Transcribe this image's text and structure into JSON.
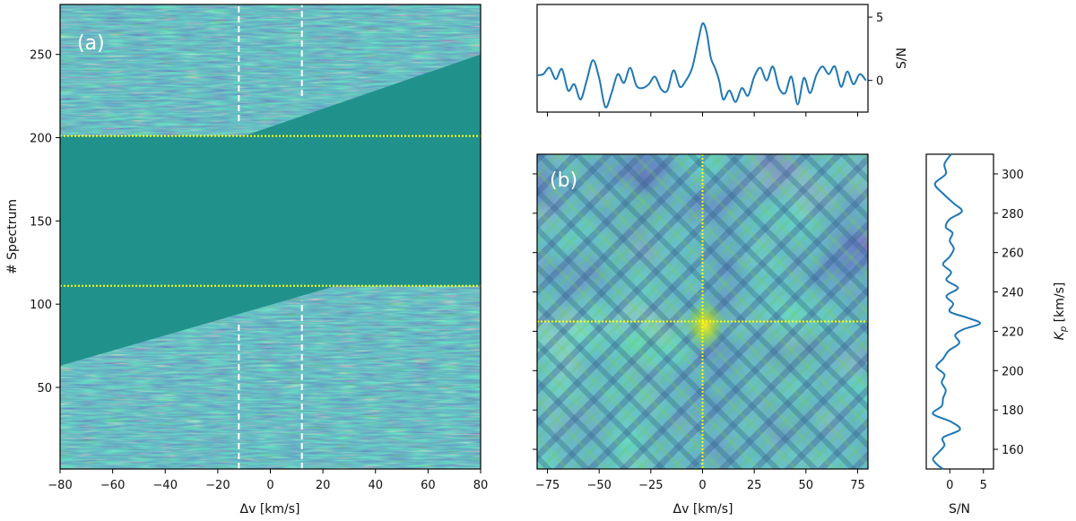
{
  "chart_data": [
    {
      "type": "heatmap",
      "panel": "(a)",
      "xlabel": "Δv [km/s]",
      "ylabel": "# Spectrum",
      "xlim": [
        -80,
        80
      ],
      "ylim": [
        1,
        280
      ],
      "xticks": [
        -80,
        -60,
        -40,
        -20,
        0,
        20,
        40,
        60,
        80
      ],
      "yticks": [
        50,
        100,
        150,
        200,
        250
      ],
      "masked_value_color": "#21918c",
      "colormap": "viridis",
      "masked_regions": [
        {
          "description_rows": [
            201,
            111
          ],
          "full_width": true
        },
        {
          "upper_edge_from": [
            -10,
            201
          ],
          "upper_edge_to": [
            80,
            250
          ]
        },
        {
          "lower_edge_from": [
            -80,
            63
          ],
          "lower_edge_to": [
            25,
            111
          ]
        }
      ],
      "horizontal_lines": [
        201,
        111
      ],
      "horizontal_line_color": "#ffff00",
      "vertical_dashed_segments": [
        {
          "x": -12,
          "y": [
            210,
            280
          ]
        },
        {
          "x": 12,
          "y": [
            225,
            280
          ]
        },
        {
          "x": -12,
          "y": [
            1,
            89
          ]
        },
        {
          "x": 12,
          "y": [
            1,
            102
          ]
        }
      ],
      "grid": false
    },
    {
      "type": "line",
      "panel": "top",
      "ylabel": "S/N",
      "xlim": [
        -80,
        80
      ],
      "ylim": [
        -2.5,
        6
      ],
      "yticks": [
        0,
        5
      ],
      "x": [
        -80,
        -77,
        -74,
        -71,
        -68,
        -65,
        -62,
        -59,
        -56,
        -53,
        -50,
        -47,
        -44,
        -41,
        -38,
        -35,
        -32,
        -29,
        -26,
        -23,
        -20,
        -17,
        -14,
        -11,
        -8,
        -5,
        -2,
        0,
        2,
        4,
        6,
        8,
        10,
        13,
        16,
        19,
        22,
        25,
        28,
        31,
        34,
        37,
        40,
        43,
        46,
        49,
        52,
        55,
        58,
        61,
        64,
        67,
        70,
        73,
        76,
        79
      ],
      "values": [
        0.4,
        0.5,
        1.0,
        0.1,
        0.9,
        -0.8,
        -0.3,
        -1.5,
        0.0,
        1.6,
        0.2,
        -2.1,
        -1.0,
        0.5,
        -0.2,
        1.0,
        -0.4,
        -0.6,
        -0.3,
        0.3,
        -0.7,
        -0.8,
        0.8,
        -0.5,
        0.0,
        1.0,
        3.2,
        4.5,
        3.8,
        1.8,
        1.0,
        0.0,
        -1.5,
        -0.8,
        -1.7,
        -0.6,
        -1.2,
        0.3,
        1.0,
        0.0,
        1.1,
        -0.6,
        -1.0,
        0.3,
        -1.9,
        0.2,
        -1.0,
        0.4,
        1.1,
        0.5,
        1.1,
        -0.5,
        0.7,
        -0.3,
        0.5,
        0.0
      ],
      "color": "#1f77b4",
      "grid": false
    },
    {
      "type": "heatmap",
      "panel": "(b)",
      "xlabel": "Δv [km/s]",
      "xlim": [
        -80,
        80
      ],
      "ylim": [
        150,
        310
      ],
      "xticks": [
        -75,
        -50,
        -25,
        0,
        25,
        50,
        75
      ],
      "peak": {
        "x": 0,
        "y": 225
      },
      "crosshair_color": "#ffff00",
      "colormap": "viridis",
      "grid": false
    },
    {
      "type": "line",
      "panel": "right",
      "xlabel": "S/N",
      "ylabel": "K_p [km/s]",
      "xlim": [
        -3.5,
        6.5
      ],
      "ylim": [
        150,
        310
      ],
      "xticks": [
        0,
        5
      ],
      "yticks": [
        160,
        180,
        200,
        220,
        240,
        260,
        280,
        300
      ],
      "y": [
        310,
        305,
        300,
        295,
        290,
        285,
        281,
        277,
        273,
        270,
        266,
        262,
        258,
        254,
        250,
        246,
        242,
        238,
        234,
        230,
        227,
        224,
        221,
        218,
        214,
        210,
        206,
        202,
        198,
        194,
        190,
        186,
        182,
        178,
        174,
        170,
        166,
        162,
        158,
        155,
        152,
        150
      ],
      "values": [
        0.2,
        -0.8,
        -0.6,
        -2.2,
        -1.0,
        0.6,
        1.8,
        0.0,
        -0.6,
        0.4,
        0.0,
        0.6,
        0.0,
        -1.0,
        0.2,
        -0.5,
        1.2,
        -0.5,
        0.5,
        0.0,
        2.5,
        4.5,
        2.0,
        0.8,
        1.4,
        -0.2,
        -1.0,
        -2.0,
        -0.8,
        -1.2,
        -0.6,
        -1.0,
        -1.2,
        -2.5,
        0.2,
        1.5,
        -1.0,
        -0.8,
        -1.8,
        -2.5,
        -1.8,
        -1.0
      ],
      "color": "#1f77b4",
      "grid": false
    }
  ]
}
